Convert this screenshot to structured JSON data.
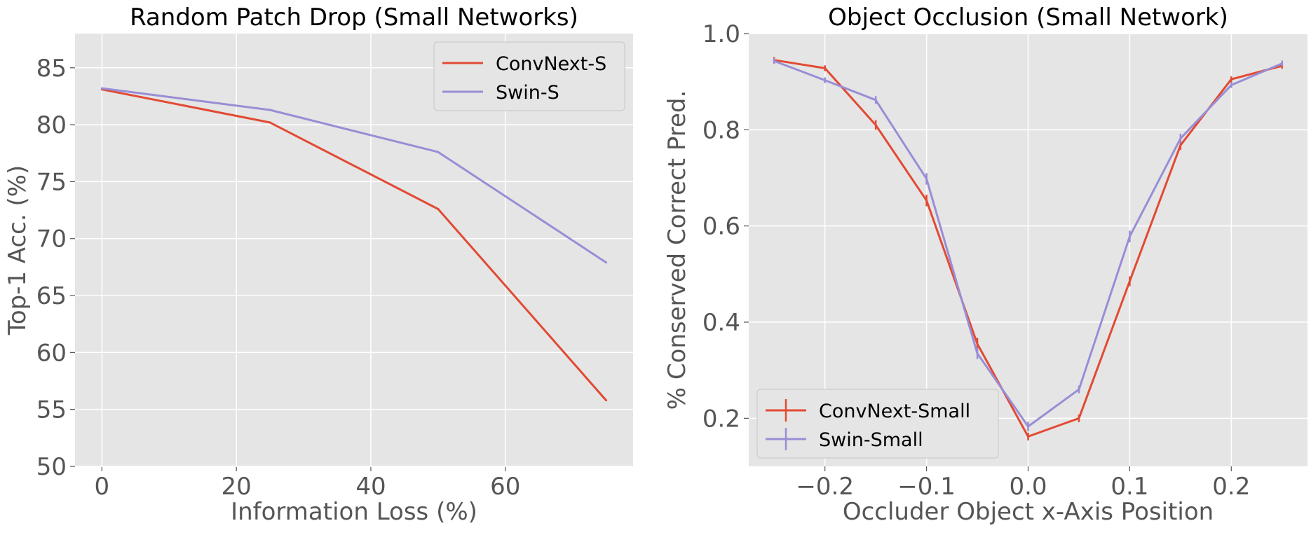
{
  "chart_data": [
    {
      "type": "line",
      "title": "Random Patch Drop (Small Networks)",
      "xlabel": "Information Loss (%)",
      "ylabel": "Top-1 Acc. (%)",
      "xlim": [
        -4,
        79
      ],
      "ylim": [
        50,
        88
      ],
      "xticks": [
        0,
        20,
        40,
        60
      ],
      "xtick_labels": [
        "0",
        "20",
        "40",
        "60"
      ],
      "yticks": [
        50,
        55,
        60,
        65,
        70,
        75,
        80,
        85
      ],
      "ytick_labels": [
        "50",
        "55",
        "60",
        "65",
        "70",
        "75",
        "80",
        "85"
      ],
      "grid": true,
      "legend_position": "top-right",
      "x": [
        0,
        25,
        50,
        75
      ],
      "series": [
        {
          "name": "ConvNext-S",
          "color": "#E24A33",
          "values": [
            83.1,
            80.2,
            72.6,
            55.8
          ]
        },
        {
          "name": "Swin-S",
          "color": "#988ED5",
          "values": [
            83.2,
            81.3,
            77.6,
            67.9
          ]
        }
      ]
    },
    {
      "type": "line",
      "title": "Object Occlusion (Small Network)",
      "xlabel": "Occluder Object x-Axis Position",
      "ylabel": "% Conserved Correct Pred.",
      "xlim": [
        -0.275,
        0.275
      ],
      "ylim": [
        0.1,
        1.0
      ],
      "xticks": [
        -0.2,
        -0.1,
        0.0,
        0.1,
        0.2
      ],
      "xtick_labels": [
        "−0.2",
        "−0.1",
        "0.0",
        "0.1",
        "0.2"
      ],
      "yticks": [
        0.2,
        0.4,
        0.6,
        0.8,
        1.0
      ],
      "ytick_labels": [
        "0.2",
        "0.4",
        "0.6",
        "0.8",
        "1.0"
      ],
      "grid": true,
      "legend_position": "bottom-left",
      "error_bars": true,
      "x": [
        -0.25,
        -0.2,
        -0.15,
        -0.1,
        -0.05,
        0.0,
        0.05,
        0.1,
        0.15,
        0.2,
        0.25
      ],
      "series": [
        {
          "name": "ConvNext-Small",
          "color": "#E24A33",
          "values": [
            0.945,
            0.928,
            0.81,
            0.653,
            0.355,
            0.162,
            0.2,
            0.485,
            0.768,
            0.905,
            0.933
          ],
          "errors": [
            0.006,
            0.006,
            0.01,
            0.012,
            0.012,
            0.008,
            0.008,
            0.01,
            0.01,
            0.006,
            0.006
          ]
        },
        {
          "name": "Swin-Small",
          "color": "#988ED5",
          "values": [
            0.943,
            0.903,
            0.862,
            0.698,
            0.335,
            0.183,
            0.26,
            0.578,
            0.782,
            0.893,
            0.938
          ],
          "errors": [
            0.006,
            0.006,
            0.008,
            0.012,
            0.012,
            0.01,
            0.008,
            0.012,
            0.01,
            0.006,
            0.006
          ]
        }
      ]
    }
  ]
}
